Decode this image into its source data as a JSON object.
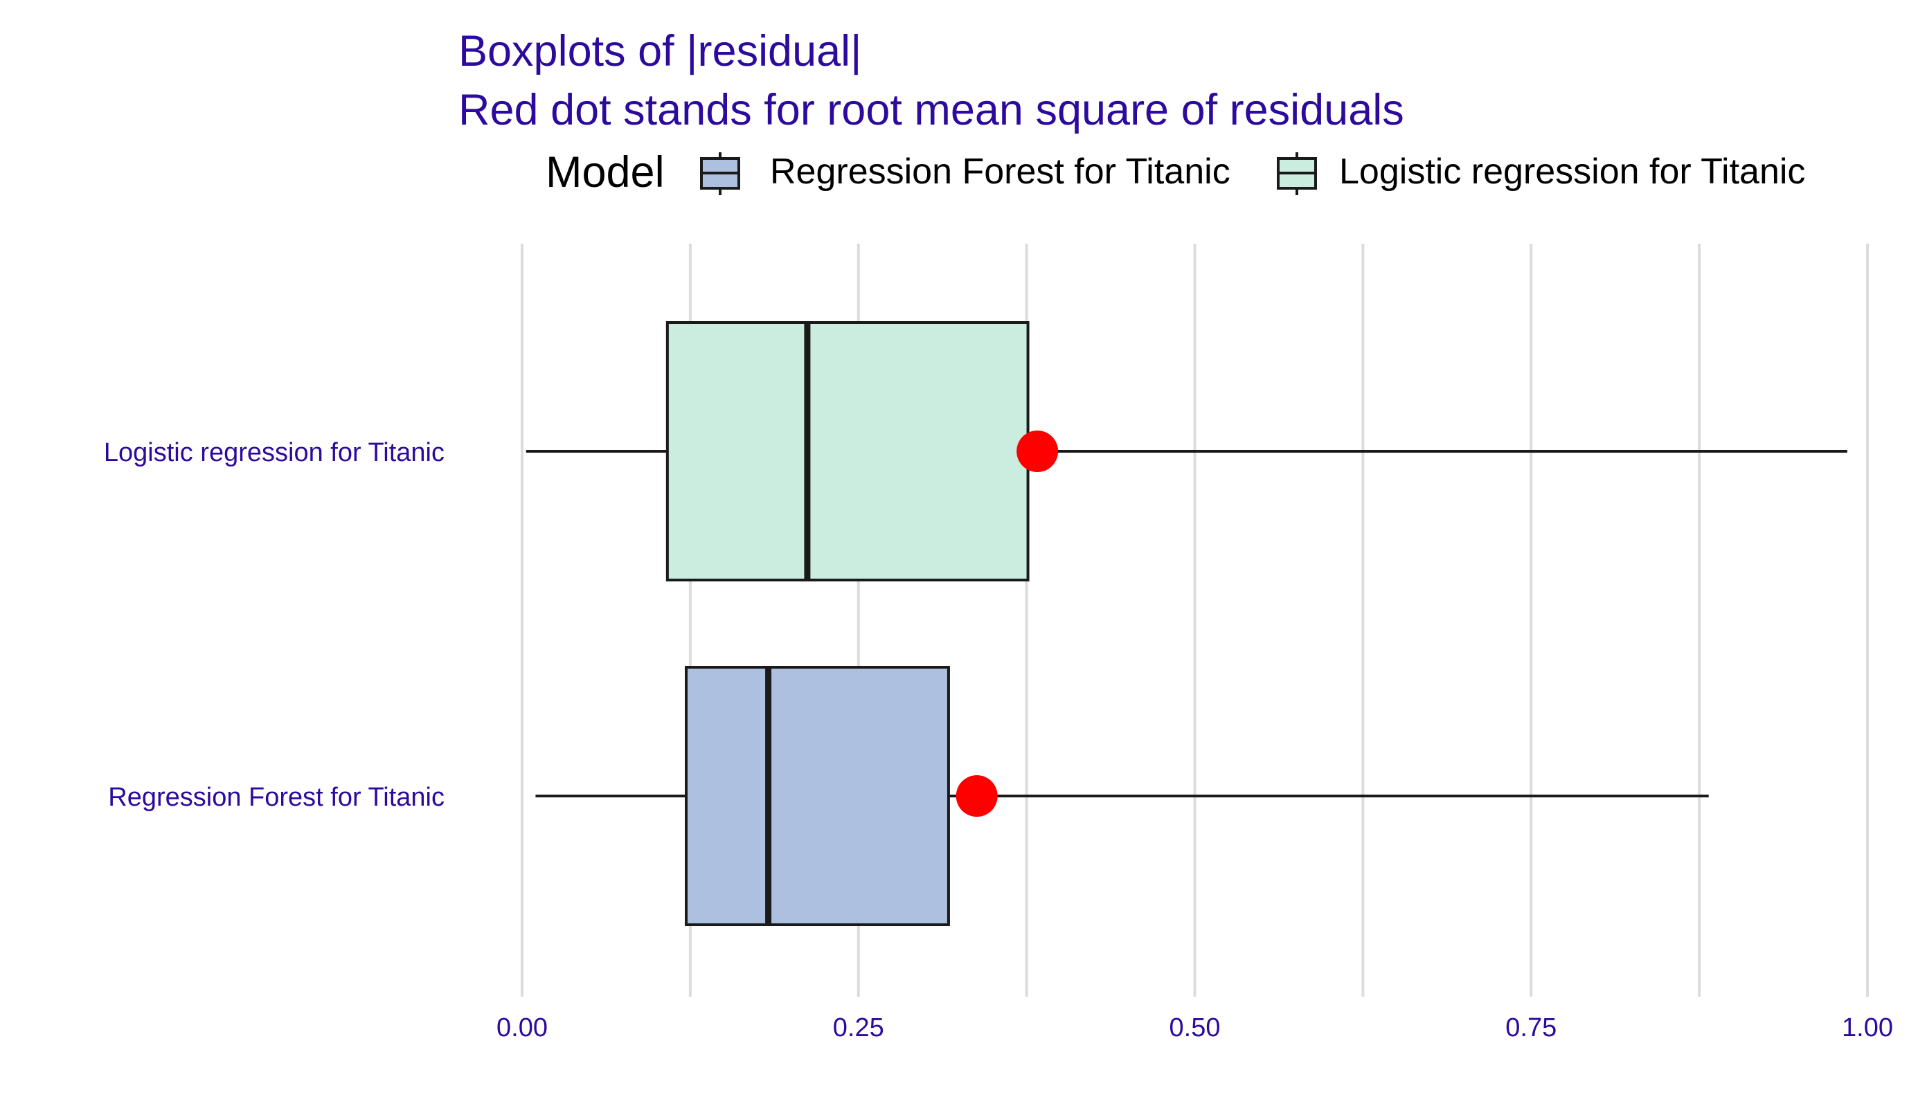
{
  "title": "Boxplots of |residual|",
  "subtitle": "Red dot stands for root mean square of residuals",
  "legend": {
    "title": "Model",
    "items": [
      {
        "label": "Regression Forest for Titanic",
        "color": "#aec0e0"
      },
      {
        "label": "Logistic regression for Titanic",
        "color": "#cbede0"
      }
    ]
  },
  "colors": {
    "title": "#2c0a9e",
    "rmse_dot": "#ff0000",
    "outline": "#1a1a1a",
    "grid": "#dcdcdc"
  },
  "chart_data": {
    "type": "boxplot",
    "orientation": "horizontal",
    "x_ticks": [
      "0.00",
      "0.25",
      "0.50",
      "0.75",
      "1.00"
    ],
    "xlim": [
      0,
      1
    ],
    "grid": true,
    "legend_position": "top",
    "series": [
      {
        "name": "Logistic regression for Titanic",
        "min": 0.003,
        "q1": 0.108,
        "median": 0.212,
        "q3": 0.376,
        "max": 0.985,
        "rmse": 0.383,
        "fill": "#cbede0"
      },
      {
        "name": "Regression Forest for Titanic",
        "min": 0.01,
        "q1": 0.122,
        "median": 0.183,
        "q3": 0.317,
        "max": 0.882,
        "rmse": 0.338,
        "fill": "#aec0e0"
      }
    ]
  }
}
